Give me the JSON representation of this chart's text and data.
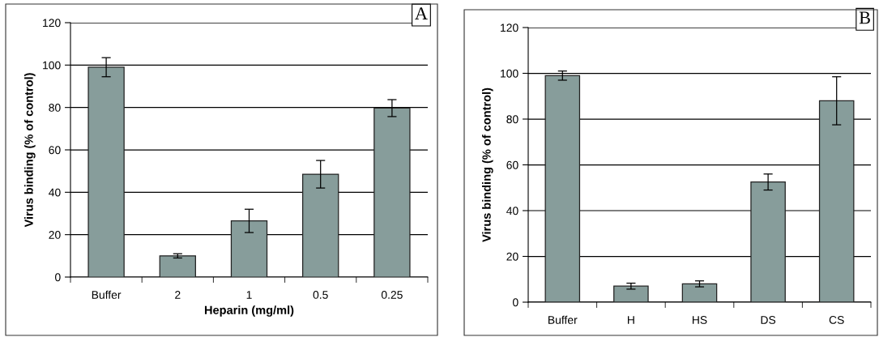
{
  "chart_data": [
    {
      "type": "bar",
      "xlabel": "Heparin (mg/ml)",
      "ylabel": "Virus binding (% of control)",
      "annotations": [
        "A"
      ],
      "categories": [
        "Buffer",
        "2",
        "1",
        "0.5",
        "0.25"
      ],
      "values": [
        99,
        10,
        26.5,
        48.5,
        79.7
      ],
      "errors": [
        4.5,
        1,
        5.5,
        6.5,
        4
      ],
      "color": "#879d9b",
      "ylim": [
        0,
        120
      ],
      "yticks": [
        0,
        20,
        40,
        60,
        80,
        100,
        120
      ],
      "grid": "y"
    },
    {
      "type": "bar",
      "ylabel": "Virus binding (% of control)",
      "annotations": [
        "B"
      ],
      "categories": [
        "Buffer",
        "H",
        "HS",
        "DS",
        "CS"
      ],
      "values": [
        99,
        7,
        8,
        52.5,
        88
      ],
      "errors": [
        2,
        1.3,
        1.3,
        3.5,
        10.5
      ],
      "color": "#879d9b",
      "ylim": [
        0,
        120
      ],
      "yticks": [
        0,
        20,
        40,
        60,
        80,
        100,
        120
      ],
      "grid": "y"
    }
  ]
}
